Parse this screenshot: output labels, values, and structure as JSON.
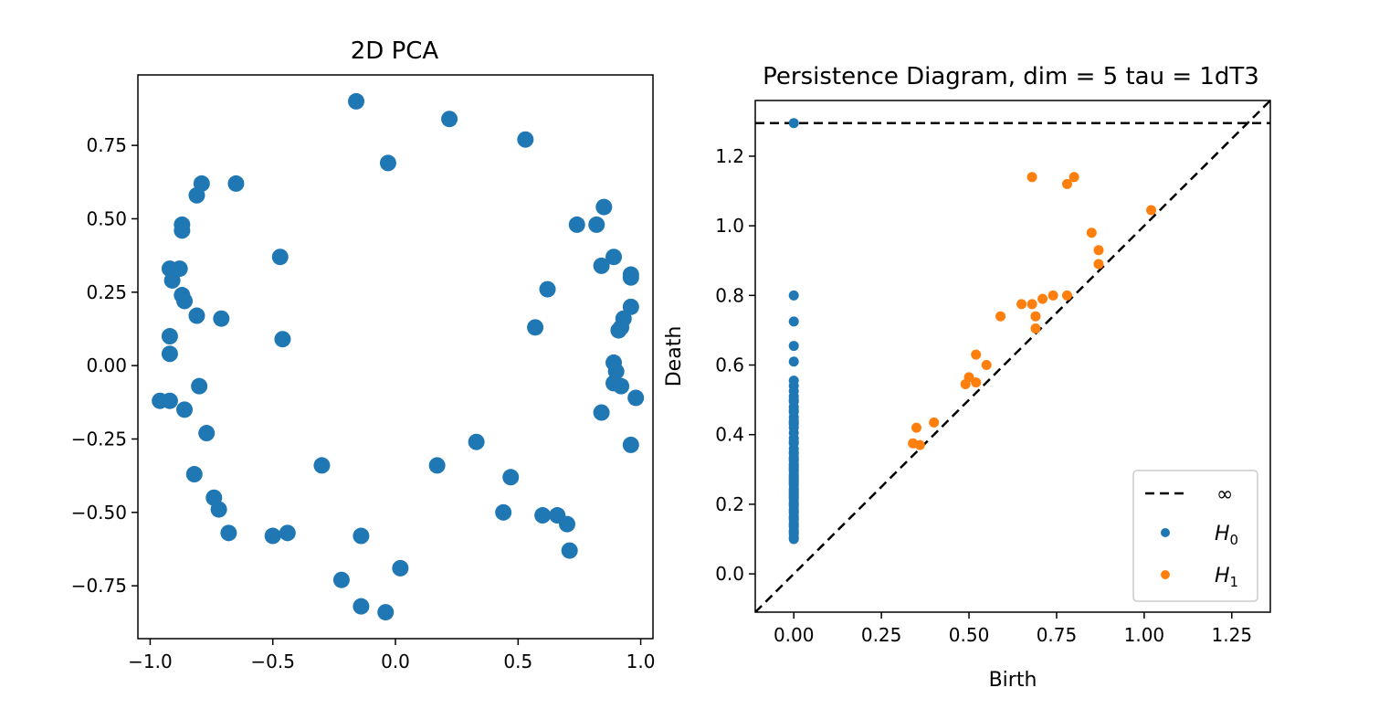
{
  "chart_data": [
    {
      "type": "scatter",
      "title": "2D PCA",
      "xlabel": "",
      "ylabel": "",
      "xlim": [
        -1.05,
        1.05
      ],
      "ylim": [
        -0.93,
        0.99
      ],
      "xticks": [
        -1.0,
        -0.5,
        0.0,
        0.5,
        1.0
      ],
      "xtick_labels": [
        "−1.0",
        "−0.5",
        "0.0",
        "0.5",
        "1.0"
      ],
      "yticks": [
        -0.75,
        -0.5,
        -0.25,
        0.0,
        0.25,
        0.5,
        0.75
      ],
      "ytick_labels": [
        "−0.75",
        "−0.50",
        "−0.25",
        "0.00",
        "0.25",
        "0.50",
        "0.75"
      ],
      "grid": false,
      "color": "#1f77b4",
      "series": [
        {
          "x": [
            -0.16,
            0.22,
            0.53,
            -0.03,
            -0.79,
            -0.81,
            -0.65,
            -0.87,
            -0.87,
            -0.92,
            -0.88,
            -0.91,
            -0.87,
            -0.86,
            -0.81,
            -0.71,
            -0.92,
            -0.92,
            -0.96,
            -0.92,
            -0.86,
            -0.8,
            -0.77,
            -0.82,
            -0.74,
            -0.72,
            -0.68,
            -0.5,
            -0.44,
            -0.3,
            -0.47,
            -0.46,
            -0.22,
            -0.14,
            -0.14,
            -0.04,
            0.02,
            0.17,
            0.33,
            0.47,
            0.44,
            0.6,
            0.66,
            0.7,
            0.71,
            0.57,
            0.62,
            0.74,
            0.82,
            0.85,
            0.84,
            0.89,
            0.96,
            0.96,
            0.96,
            0.93,
            0.92,
            0.91,
            0.89,
            0.9,
            0.89,
            0.92,
            0.98,
            0.96,
            0.84
          ],
          "y": [
            0.9,
            0.84,
            0.77,
            0.69,
            0.62,
            0.58,
            0.62,
            0.48,
            0.46,
            0.33,
            0.33,
            0.29,
            0.24,
            0.22,
            0.17,
            0.16,
            0.1,
            0.04,
            -0.12,
            -0.12,
            -0.15,
            -0.07,
            -0.23,
            -0.37,
            -0.45,
            -0.49,
            -0.57,
            -0.58,
            -0.57,
            -0.34,
            0.37,
            0.09,
            -0.73,
            -0.58,
            -0.82,
            -0.84,
            -0.69,
            -0.34,
            -0.26,
            -0.38,
            -0.5,
            -0.51,
            -0.51,
            -0.54,
            -0.63,
            0.13,
            0.26,
            0.48,
            0.48,
            0.54,
            0.34,
            0.37,
            0.31,
            0.3,
            0.2,
            0.16,
            0.13,
            0.12,
            0.01,
            -0.02,
            -0.06,
            -0.07,
            -0.11,
            -0.27,
            -0.16
          ]
        }
      ]
    },
    {
      "type": "scatter",
      "title": "Persistence Diagram, dim = 5 tau = 1dT3",
      "xlabel": "Birth",
      "ylabel": "Death",
      "xlim": [
        -0.11,
        1.36
      ],
      "ylim": [
        -0.11,
        1.36
      ],
      "xticks": [
        0.0,
        0.25,
        0.5,
        0.75,
        1.0,
        1.25
      ],
      "xtick_labels": [
        "0.00",
        "0.25",
        "0.50",
        "0.75",
        "1.00",
        "1.25"
      ],
      "yticks": [
        0.0,
        0.2,
        0.4,
        0.6,
        0.8,
        1.0,
        1.2
      ],
      "ytick_labels": [
        "0.0",
        "0.2",
        "0.4",
        "0.6",
        "0.8",
        "1.0",
        "1.2"
      ],
      "grid": false,
      "infinity_line": 1.295,
      "diagonal": true,
      "legend": {
        "placement": "bottom-right",
        "entries": [
          {
            "label": "∞",
            "marker": "dashed-line",
            "color": "#000000"
          },
          {
            "label": "H",
            "subscript": "0",
            "marker": "dot",
            "color": "#1f77b4"
          },
          {
            "label": "H",
            "subscript": "1",
            "marker": "dot",
            "color": "#ff7f0e"
          }
        ]
      },
      "series": [
        {
          "name": "H0",
          "color": "#1f77b4",
          "x": [
            0,
            0,
            0,
            0,
            0,
            0,
            0,
            0,
            0,
            0,
            0,
            0,
            0,
            0,
            0,
            0,
            0,
            0,
            0,
            0,
            0,
            0,
            0,
            0,
            0,
            0,
            0,
            0,
            0,
            0,
            0,
            0,
            0,
            0,
            0,
            0,
            0,
            0,
            0,
            0,
            0,
            0,
            0,
            0,
            0,
            0,
            0,
            0,
            0,
            0,
            0,
            0,
            0,
            0,
            0,
            0,
            0,
            0,
            0,
            0,
            0,
            0,
            0,
            0,
            0
          ],
          "y": [
            1.295,
            0.8,
            0.725,
            0.655,
            0.61,
            0.555,
            0.54,
            0.525,
            0.51,
            0.495,
            0.48,
            0.465,
            0.45,
            0.435,
            0.42,
            0.405,
            0.39,
            0.375,
            0.36,
            0.345,
            0.335,
            0.325,
            0.315,
            0.305,
            0.295,
            0.285,
            0.275,
            0.265,
            0.255,
            0.245,
            0.235,
            0.225,
            0.215,
            0.205,
            0.195,
            0.185,
            0.175,
            0.165,
            0.155,
            0.145,
            0.135,
            0.125,
            0.115,
            0.105,
            0.1,
            0.5,
            0.47,
            0.43,
            0.38,
            0.35,
            0.31,
            0.28,
            0.26,
            0.24,
            0.22,
            0.2,
            0.18,
            0.16,
            0.14,
            0.12,
            0.44,
            0.33,
            0.3,
            0.27,
            0.23
          ]
        },
        {
          "name": "H1",
          "color": "#ff7f0e",
          "x": [
            0.68,
            0.78,
            0.8,
            1.02,
            0.85,
            0.87,
            0.87,
            0.59,
            0.65,
            0.68,
            0.69,
            0.71,
            0.74,
            0.78,
            0.69,
            0.52,
            0.55,
            0.5,
            0.49,
            0.52,
            0.35,
            0.4,
            0.34,
            0.36
          ],
          "y": [
            1.14,
            1.12,
            1.14,
            1.045,
            0.98,
            0.93,
            0.89,
            0.74,
            0.775,
            0.775,
            0.74,
            0.79,
            0.8,
            0.8,
            0.705,
            0.63,
            0.6,
            0.565,
            0.545,
            0.55,
            0.42,
            0.435,
            0.375,
            0.37
          ]
        }
      ]
    }
  ]
}
